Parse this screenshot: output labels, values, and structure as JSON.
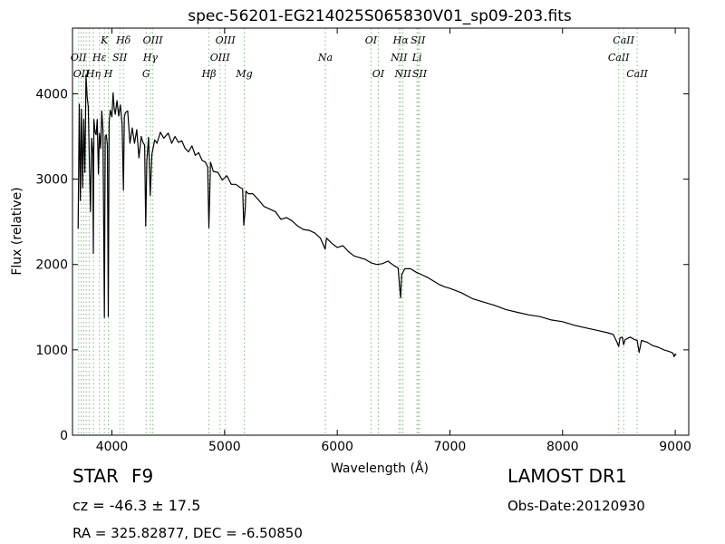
{
  "chart_data": {
    "type": "line",
    "title": "spec-56201-EG214025S065830V01_sp09-203.fits",
    "xlabel": "Wavelength (Å)",
    "ylabel": "Flux (relative)",
    "xlim": [
      3650,
      9120
    ],
    "ylim": [
      0,
      4770
    ],
    "xticks": [
      4000,
      5000,
      6000,
      7000,
      8000,
      9000
    ],
    "yticks": [
      0,
      1000,
      2000,
      3000,
      4000
    ],
    "grid": false,
    "series": [
      {
        "color": "#000000",
        "x": [
          3700,
          3710,
          3720,
          3730,
          3740,
          3750,
          3760,
          3770,
          3780,
          3790,
          3800,
          3810,
          3820,
          3830,
          3835,
          3840,
          3850,
          3860,
          3870,
          3880,
          3889,
          3900,
          3910,
          3920,
          3933,
          3940,
          3950,
          3960,
          3968,
          3975,
          3985,
          4000,
          4010,
          4020,
          4030,
          4045,
          4060,
          4075,
          4090,
          4102,
          4110,
          4120,
          4140,
          4160,
          4180,
          4200,
          4220,
          4240,
          4260,
          4275,
          4290,
          4300,
          4310,
          4325,
          4340,
          4355,
          4380,
          4400,
          4430,
          4460,
          4500,
          4530,
          4560,
          4590,
          4620,
          4650,
          4680,
          4710,
          4740,
          4770,
          4800,
          4830,
          4850,
          4861,
          4875,
          4900,
          4940,
          4980,
          5020,
          5060,
          5100,
          5140,
          5160,
          5170,
          5183,
          5190,
          5210,
          5250,
          5300,
          5350,
          5400,
          5450,
          5500,
          5550,
          5600,
          5650,
          5700,
          5750,
          5800,
          5850,
          5880,
          5893,
          5905,
          5950,
          6000,
          6050,
          6100,
          6150,
          6200,
          6250,
          6300,
          6350,
          6400,
          6450,
          6500,
          6540,
          6555,
          6563,
          6572,
          6600,
          6650,
          6700,
          6750,
          6800,
          6850,
          6900,
          6950,
          7000,
          7100,
          7200,
          7300,
          7400,
          7500,
          7600,
          7700,
          7800,
          7900,
          8000,
          8100,
          8200,
          8300,
          8400,
          8450,
          8480,
          8498,
          8510,
          8530,
          8542,
          8555,
          8600,
          8640,
          8662,
          8680,
          8700,
          8750,
          8800,
          8850,
          8900,
          8950,
          8980,
          8990,
          9000,
          9010
        ],
        "y": [
          2420,
          3880,
          2750,
          3820,
          2900,
          3700,
          3080,
          4220,
          3960,
          3850,
          3200,
          2620,
          3480,
          3300,
          2130,
          3700,
          3550,
          3520,
          3700,
          3060,
          3540,
          3360,
          3800,
          3580,
          1380,
          3500,
          3520,
          3400,
          1390,
          3660,
          3810,
          3730,
          4010,
          3830,
          3760,
          3920,
          3740,
          3870,
          3650,
          2870,
          3730,
          3780,
          3800,
          3420,
          3600,
          3420,
          3580,
          3250,
          3500,
          3430,
          3400,
          2450,
          3210,
          3490,
          2810,
          3290,
          3460,
          3420,
          3550,
          3480,
          3540,
          3420,
          3500,
          3430,
          3450,
          3360,
          3320,
          3390,
          3280,
          3310,
          3220,
          3200,
          3140,
          2430,
          3200,
          3090,
          3080,
          2990,
          3040,
          2940,
          2940,
          2900,
          2890,
          2460,
          2650,
          2860,
          2830,
          2830,
          2760,
          2680,
          2650,
          2620,
          2530,
          2550,
          2510,
          2450,
          2410,
          2400,
          2370,
          2310,
          2220,
          2180,
          2310,
          2250,
          2200,
          2220,
          2150,
          2100,
          2080,
          2060,
          2020,
          2000,
          2010,
          2040,
          1990,
          1960,
          1720,
          1610,
          1880,
          1950,
          1950,
          1910,
          1880,
          1850,
          1810,
          1770,
          1740,
          1720,
          1670,
          1600,
          1560,
          1520,
          1470,
          1440,
          1410,
          1390,
          1350,
          1330,
          1290,
          1260,
          1230,
          1200,
          1180,
          1100,
          1040,
          1140,
          1150,
          1060,
          1120,
          1150,
          1120,
          1110,
          970,
          1110,
          1090,
          1050,
          1030,
          1000,
          980,
          960,
          920,
          950,
          940
        ]
      }
    ],
    "lines": [
      {
        "x": 3704,
        "label": "OII",
        "row": 1
      },
      {
        "x": 3727,
        "label": "OII",
        "row": 2
      },
      {
        "x": 3750,
        "label": "",
        "row": 0
      },
      {
        "x": 3771,
        "label": "",
        "row": 0
      },
      {
        "x": 3798,
        "label": "",
        "row": 0
      },
      {
        "x": 3835,
        "label": "Hη",
        "row": 2
      },
      {
        "x": 3889,
        "label": "Hε",
        "row": 1
      },
      {
        "x": 3933,
        "label": "K",
        "row": 0
      },
      {
        "x": 3968,
        "label": "H",
        "row": 2
      },
      {
        "x": 4070,
        "label": "SII",
        "row": 1
      },
      {
        "x": 4102,
        "label": "Hδ",
        "row": 0
      },
      {
        "x": 4304,
        "label": "G",
        "row": 2
      },
      {
        "x": 4341,
        "label": "Hγ",
        "row": 1
      },
      {
        "x": 4363,
        "label": "OIII",
        "row": 0
      },
      {
        "x": 4861,
        "label": "Hβ",
        "row": 2
      },
      {
        "x": 4959,
        "label": "OIII",
        "row": 1
      },
      {
        "x": 5007,
        "label": "OIII",
        "row": 0
      },
      {
        "x": 5175,
        "label": "Mg",
        "row": 2
      },
      {
        "x": 5894,
        "label": "Na",
        "row": 1
      },
      {
        "x": 6300,
        "label": "OI",
        "row": 0
      },
      {
        "x": 6364,
        "label": "OI",
        "row": 2
      },
      {
        "x": 6548,
        "label": "NII",
        "row": 1
      },
      {
        "x": 6563,
        "label": "Hα",
        "row": 0
      },
      {
        "x": 6583,
        "label": "NII",
        "row": 2
      },
      {
        "x": 6708,
        "label": "Li",
        "row": 1
      },
      {
        "x": 6717,
        "label": "SII",
        "row": 0
      },
      {
        "x": 6731,
        "label": "SII",
        "row": 2
      },
      {
        "x": 8498,
        "label": "CaII",
        "row": 1
      },
      {
        "x": 8542,
        "label": "CaII",
        "row": 0
      },
      {
        "x": 8662,
        "label": "CaII",
        "row": 2
      }
    ]
  },
  "info": {
    "class": "STAR",
    "subclass": "F9",
    "cz": "cz = -46.3 ± 17.5",
    "radec": "RA = 325.82877, DEC = -6.50850",
    "survey": "LAMOST DR1",
    "obsdate": "Obs-Date:20120930"
  }
}
